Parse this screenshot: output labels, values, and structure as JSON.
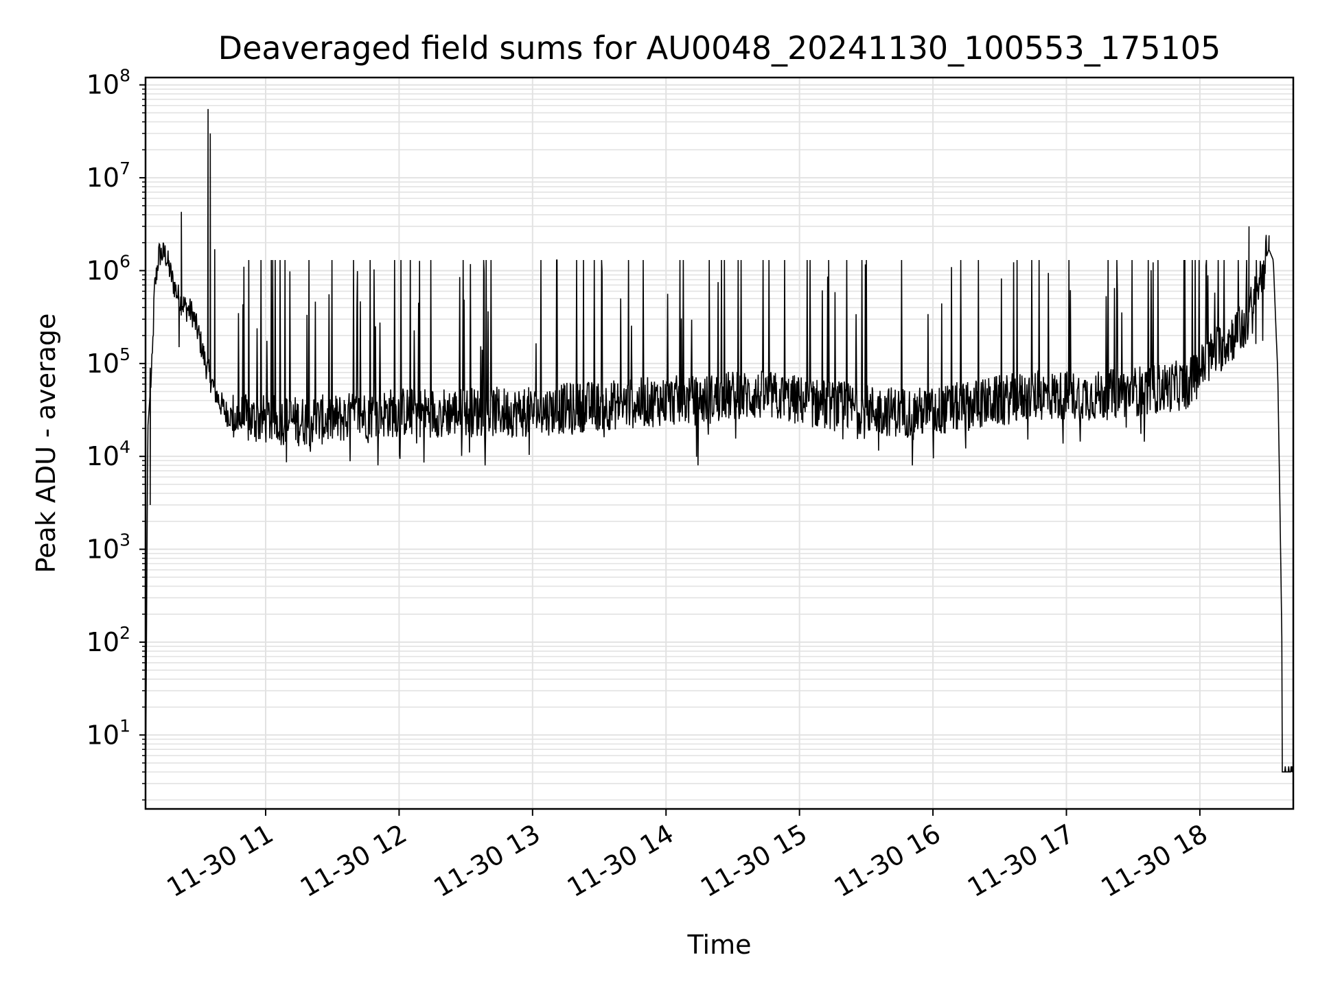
{
  "chart_data": {
    "type": "line",
    "title": "Deaveraged field sums for AU0048_20241130_100553_175105",
    "xlabel": "Time",
    "ylabel": "Peak ADU - average",
    "yscale": "log",
    "ylim": [
      1.6,
      120000000
    ],
    "xlim": [
      "2024-11-30 10:06",
      "2024-11-30 18:42"
    ],
    "grid": true,
    "x_ticks": [
      {
        "x": "2024-11-30 11:00",
        "label": "11-30 11"
      },
      {
        "x": "2024-11-30 12:00",
        "label": "11-30 12"
      },
      {
        "x": "2024-11-30 13:00",
        "label": "11-30 13"
      },
      {
        "x": "2024-11-30 14:00",
        "label": "11-30 14"
      },
      {
        "x": "2024-11-30 15:00",
        "label": "11-30 15"
      },
      {
        "x": "2024-11-30 16:00",
        "label": "11-30 16"
      },
      {
        "x": "2024-11-30 17:00",
        "label": "11-30 17"
      },
      {
        "x": "2024-11-30 18:00",
        "label": "11-30 18"
      }
    ],
    "y_ticks": [
      {
        "value": 10,
        "base": "10",
        "exp": "1"
      },
      {
        "value": 100,
        "base": "10",
        "exp": "2"
      },
      {
        "value": 1000,
        "base": "10",
        "exp": "3"
      },
      {
        "value": 10000,
        "base": "10",
        "exp": "4"
      },
      {
        "value": 100000,
        "base": "10",
        "exp": "5"
      },
      {
        "value": 1000000,
        "base": "10",
        "exp": "6"
      },
      {
        "value": 10000000,
        "base": "10",
        "exp": "7"
      },
      {
        "value": 100000000,
        "base": "10",
        "exp": "8"
      }
    ],
    "series": [
      {
        "color": "#000000",
        "baseline": {
          "x": [
            "2024-11-30 10:06",
            "2024-11-30 10:07",
            "2024-11-30 10:09",
            "2024-11-30 10:10",
            "2024-11-30 10:12",
            "2024-11-30 10:15",
            "2024-11-30 10:18",
            "2024-11-30 10:21",
            "2024-11-30 10:24",
            "2024-11-30 10:27",
            "2024-11-30 10:30",
            "2024-11-30 10:33",
            "2024-11-30 10:36",
            "2024-11-30 10:39",
            "2024-11-30 10:42",
            "2024-11-30 10:45",
            "2024-11-30 10:50",
            "2024-11-30 10:55",
            "2024-11-30 11:00",
            "2024-11-30 11:15",
            "2024-11-30 11:30",
            "2024-11-30 11:45",
            "2024-11-30 12:00",
            "2024-11-30 12:15",
            "2024-11-30 12:30",
            "2024-11-30 12:45",
            "2024-11-30 13:00",
            "2024-11-30 13:15",
            "2024-11-30 13:30",
            "2024-11-30 13:45",
            "2024-11-30 14:00",
            "2024-11-30 14:15",
            "2024-11-30 14:30",
            "2024-11-30 14:45",
            "2024-11-30 15:00",
            "2024-11-30 15:15",
            "2024-11-30 15:30",
            "2024-11-30 15:45",
            "2024-11-30 16:00",
            "2024-11-30 16:15",
            "2024-11-30 16:30",
            "2024-11-30 16:45",
            "2024-11-30 17:00",
            "2024-11-30 17:15",
            "2024-11-30 17:30",
            "2024-11-30 17:45",
            "2024-11-30 17:55",
            "2024-11-30 18:05",
            "2024-11-30 18:15",
            "2024-11-30 18:20",
            "2024-11-30 18:25",
            "2024-11-30 18:28",
            "2024-11-30 18:31",
            "2024-11-30 18:33",
            "2024-11-30 18:35",
            "2024-11-30 18:36",
            "2024-11-30 18:37",
            "2024-11-30 18:42"
          ],
          "y": [
            2,
            20000,
            100000,
            600000,
            1500000,
            1500000,
            800000,
            500000,
            400000,
            350000,
            200000,
            100000,
            60000,
            40000,
            30000,
            27000,
            25000,
            25000,
            25000,
            24000,
            25000,
            28000,
            30000,
            30000,
            30000,
            30000,
            30000,
            33000,
            35000,
            37000,
            40000,
            40000,
            45000,
            45000,
            40000,
            35000,
            32000,
            30000,
            30000,
            35000,
            40000,
            45000,
            45000,
            45000,
            50000,
            55000,
            60000,
            120000,
            200000,
            250000,
            500000,
            1000000,
            1700000,
            1300000,
            80000,
            3000,
            60,
            4
          ]
        },
        "spikes": [
          {
            "x": "2024-11-30 10:08",
            "y": 90000
          },
          {
            "x": "2024-11-30 10:08",
            "y": 3000,
            "dir": "down"
          },
          {
            "x": "2024-11-30 10:21",
            "y": 150000,
            "dir": "down"
          },
          {
            "x": "2024-11-30 10:22",
            "y": 4300000
          },
          {
            "x": "2024-11-30 10:34",
            "y": 55000000
          },
          {
            "x": "2024-11-30 10:35",
            "y": 30000000
          },
          {
            "x": "2024-11-30 10:37",
            "y": 1700000
          },
          {
            "x": "2024-11-30 18:22",
            "y": 3000000
          },
          {
            "x": "2024-11-30 18:31",
            "y": 2400000
          }
        ],
        "noise": {
          "x_start": "2024-11-30 10:45",
          "x_end": "2024-11-30 18:30",
          "peak_max": 1300000,
          "trough_min": 8000
        }
      }
    ]
  }
}
